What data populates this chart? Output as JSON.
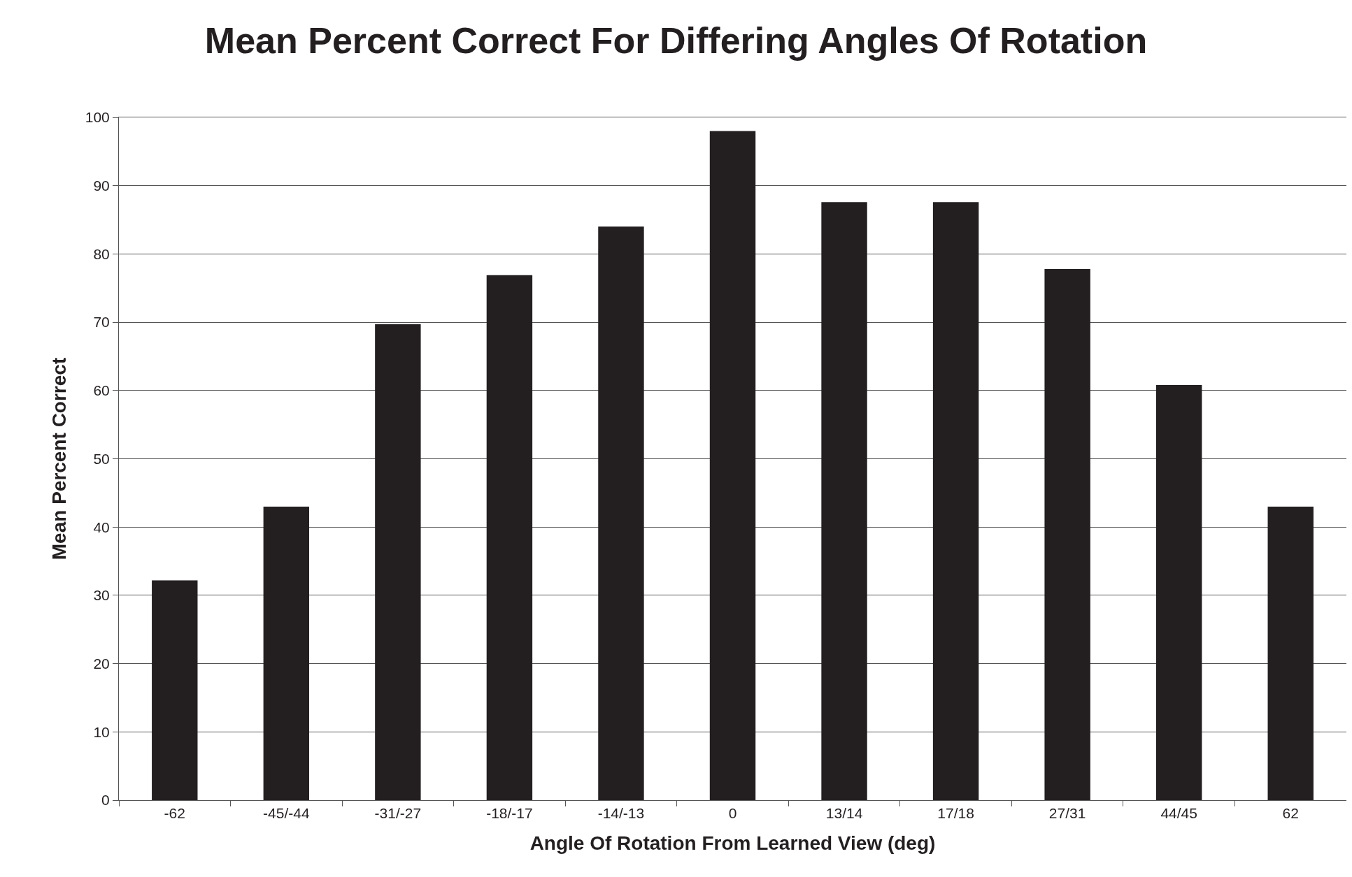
{
  "chart_data": {
    "type": "bar",
    "title": "Mean Percent Correct For Differing Angles Of Rotation",
    "xlabel": "Angle Of Rotation From Learned View (deg)",
    "ylabel": "Mean Percent Correct",
    "categories": [
      "-62",
      "-45/-44",
      "-31/-27",
      "-18/-17",
      "-14/-13",
      "0",
      "13/14",
      "17/18",
      "27/31",
      "44/45",
      "62"
    ],
    "values": [
      32.2,
      43,
      69.7,
      76.9,
      84,
      98,
      87.6,
      87.6,
      77.8,
      60.8,
      43
    ],
    "color": "#231f20",
    "ylim": [
      0,
      100
    ],
    "yticks": [
      0,
      10,
      20,
      30,
      40,
      50,
      60,
      70,
      80,
      90,
      100
    ],
    "grid": "y"
  }
}
